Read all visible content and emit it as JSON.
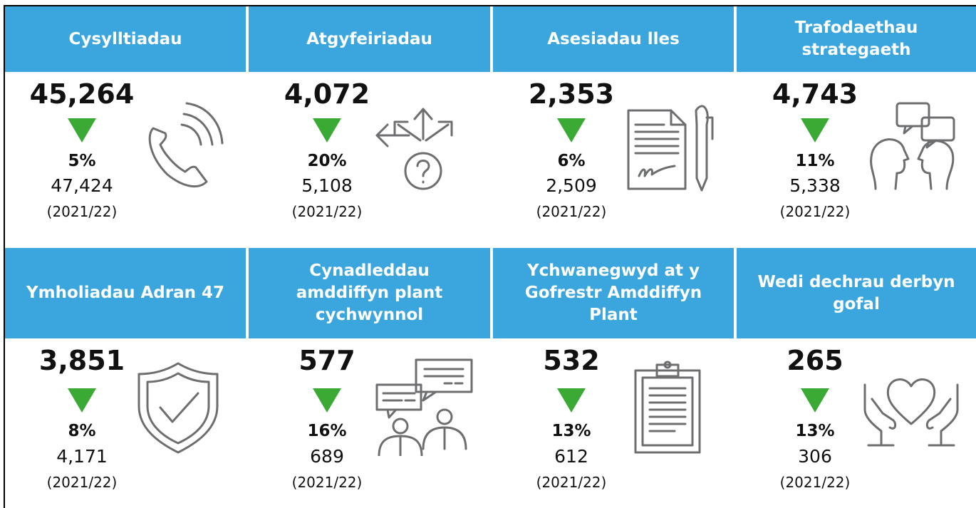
{
  "tiles": [
    {
      "title": "Cysylltiadau",
      "value": "45,264",
      "change": "5%",
      "previous": "47,424",
      "period": "(2021/22)"
    },
    {
      "title": "Atgyfeiriadau",
      "value": "4,072",
      "change": "20%",
      "previous": "5,108",
      "period": "(2021/22)"
    },
    {
      "title": "Asesiadau lles",
      "value": "2,353",
      "change": "6%",
      "previous": "2,509",
      "period": "(2021/22)"
    },
    {
      "title": "Trafodaethau strategaeth",
      "value": "4,743",
      "change": "11%",
      "previous": "5,338",
      "period": "(2021/22)"
    },
    {
      "title": "Ymholiadau Adran 47",
      "value": "3,851",
      "change": "8%",
      "previous": "4,171",
      "period": "(2021/22)"
    },
    {
      "title": "Cynadleddau amddiffyn plant cychwynnol",
      "value": "577",
      "change": "16%",
      "previous": "689",
      "period": "(2021/22)"
    },
    {
      "title": "Ychwanegwyd at y Gofrestr Amddiffyn Plant",
      "value": "532",
      "change": "13%",
      "previous": "612",
      "period": "(2021/22)"
    },
    {
      "title": "Wedi dechrau derbyn gofal",
      "value": "265",
      "change": "13%",
      "previous": "306",
      "period": "(2021/22)"
    }
  ]
}
